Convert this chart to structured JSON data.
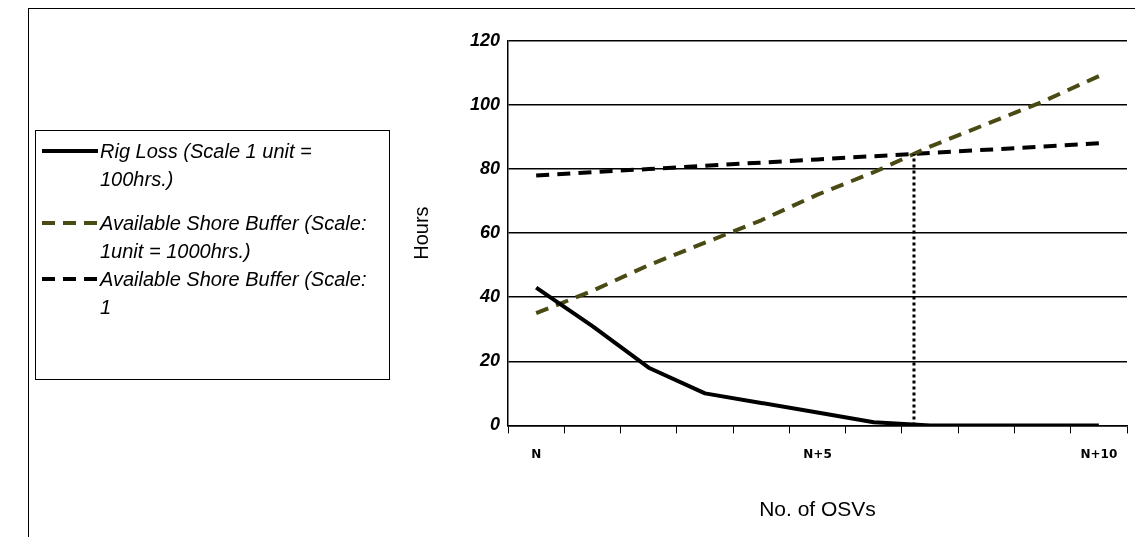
{
  "chart_data": {
    "type": "line",
    "xlabel": "No. of OSVs",
    "ylabel": "Hours",
    "categories": [
      "N",
      null,
      null,
      null,
      null,
      "N+5",
      null,
      null,
      null,
      null,
      "N+10"
    ],
    "ylim": [
      0,
      120
    ],
    "yticks": [
      0,
      20,
      40,
      60,
      80,
      100,
      120
    ],
    "series": [
      {
        "name": "Rig Loss (Scale 1 unit = 100hrs.)",
        "color": "#000000",
        "line_style": "solid",
        "values": [
          43,
          31,
          18,
          10,
          7,
          4,
          1,
          0,
          0,
          0,
          0
        ]
      },
      {
        "name": "Available Shore Buffer (Scale: 1unit = 1000hrs.)",
        "color": "#4a4a14",
        "line_style": "dashed",
        "values": [
          35,
          42,
          50,
          57,
          64,
          72,
          79,
          87,
          94,
          101,
          109
        ]
      },
      {
        "name": "Available Shore Buffer (Scale:  1",
        "color": "#000000",
        "line_style": "dashed",
        "values": [
          78,
          79,
          80,
          81,
          82,
          83,
          84,
          85,
          86,
          87,
          88
        ]
      }
    ],
    "grid": "y",
    "legend": "left",
    "marker": "none"
  }
}
